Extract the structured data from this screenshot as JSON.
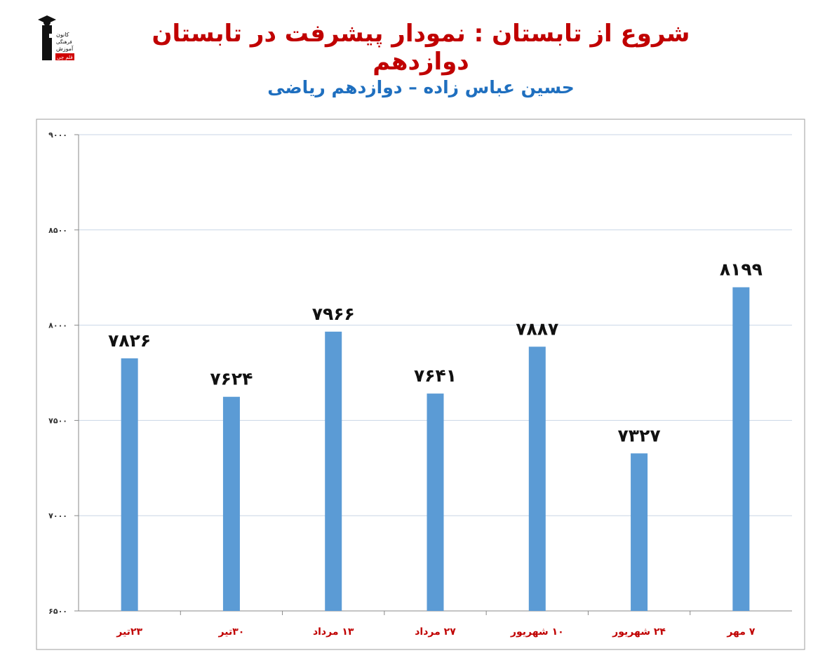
{
  "header": {
    "title": "شروع از تابستان : نمودار پیشرفت در تابستان دوازدهم",
    "subtitle": "حسین عباس زاده – دوازدهم ریاضی",
    "logo_lines": [
      "کانون",
      "فرهنگی",
      "آموزش",
      "قلم چی"
    ]
  },
  "chart_data": {
    "type": "bar",
    "title": "",
    "xlabel": "",
    "ylabel": "",
    "ylim": [
      6500,
      9000
    ],
    "yticks": [
      6500,
      7000,
      7500,
      8000,
      8500,
      9000
    ],
    "ytick_labels": [
      "۶۵۰۰",
      "۷۰۰۰",
      "۷۵۰۰",
      "۸۰۰۰",
      "۸۵۰۰",
      "۹۰۰۰"
    ],
    "categories": [
      "۲۳تیر",
      "۳۰تیر",
      "۱۳ مرداد",
      "۲۷ مرداد",
      "۱۰ شهریور",
      "۲۴ شهریور",
      "۷ مهر"
    ],
    "values": [
      7826,
      7624,
      7966,
      7641,
      7887,
      7327,
      8199
    ],
    "value_labels": [
      "۷۸۲۶",
      "۷۶۲۴",
      "۷۹۶۶",
      "۷۶۴۱",
      "۷۸۸۷",
      "۷۳۲۷",
      "۸۱۹۹"
    ],
    "bar_color": "#5b9bd5",
    "grid": true,
    "category_label_color": "#c00000"
  }
}
